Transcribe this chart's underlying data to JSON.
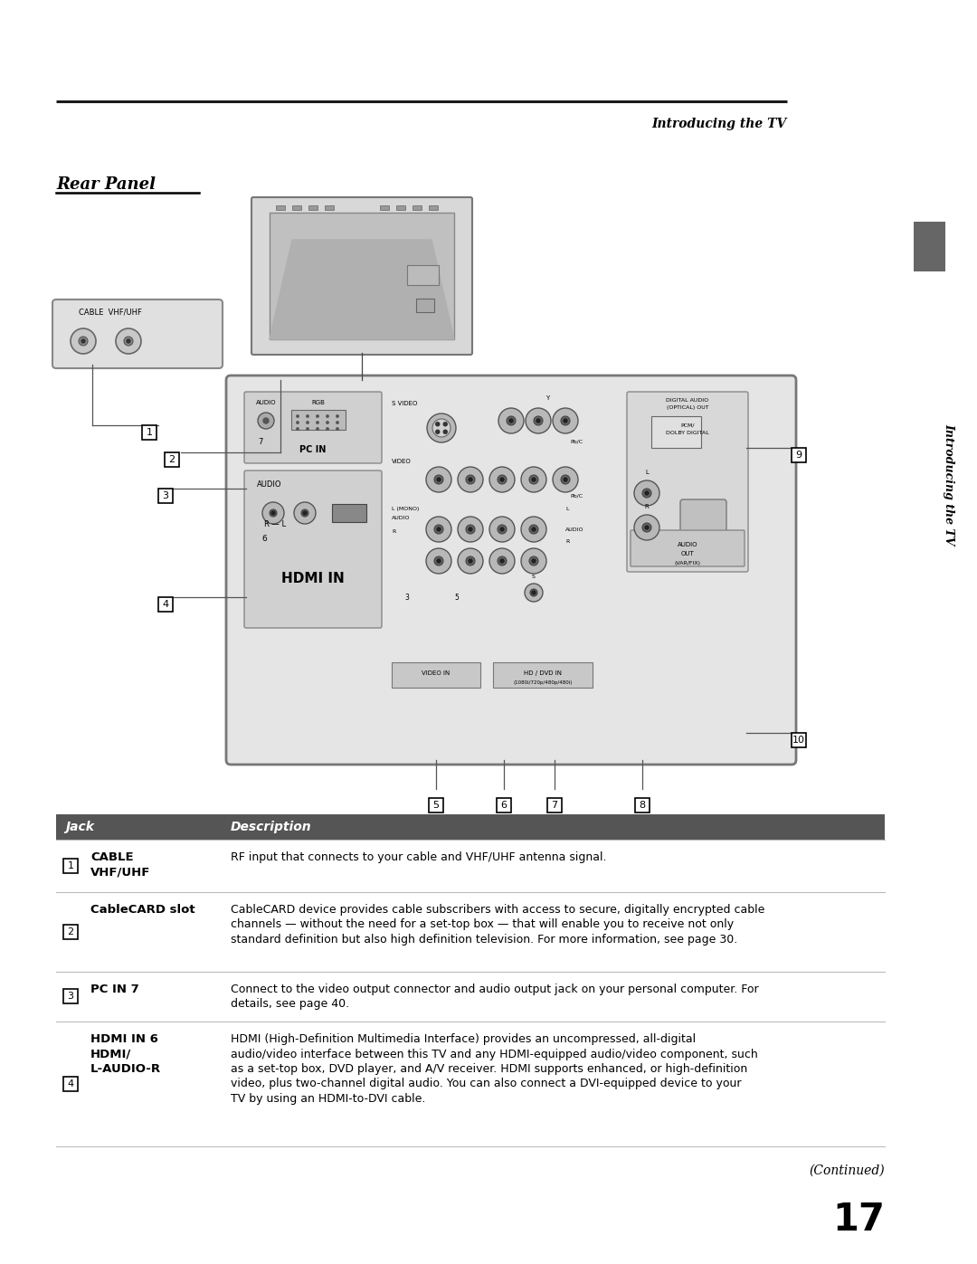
{
  "page_title_right": "Introducing the TV",
  "section_title": "Rear Panel",
  "bg_color": "#ffffff",
  "header_bar_color": "#555555",
  "header_text_color": "#ffffff",
  "table_header": [
    "Jack",
    "Description"
  ],
  "rows": [
    {
      "num": "1",
      "jack": "CABLE\nVHF/UHF",
      "desc": "RF input that connects to your cable and VHF/UHF antenna signal."
    },
    {
      "num": "2",
      "jack": "CableCARD slot",
      "desc": "CableCARD device provides cable subscribers with access to secure, digitally encrypted cable\nchannels — without the need for a set-top box — that will enable you to receive not only\nstandard definition but also high definition television. For more information, see page 30."
    },
    {
      "num": "3",
      "jack": "PC IN 7",
      "desc": "Connect to the video output connector and audio output jack on your personal computer. For\ndetails, see page 40."
    },
    {
      "num": "4",
      "jack": "HDMI IN 6\nHDMI/\nL-AUDIO-R",
      "desc": "HDMI (High-Definition Multimedia Interface) provides an uncompressed, all-digital\naudio/video interface between this TV and any HDMI-equipped audio/video component, such\nas a set-top box, DVD player, and A/V receiver. HDMI supports enhanced, or high-definition\nvideo, plus two-channel digital audio. You can also connect a DVI-equipped device to your\nTV by using an HDMI-to-DVI cable."
    }
  ],
  "continued_text": "(Continued)",
  "page_number": "17",
  "sidebar_text": "Introducing the TV"
}
